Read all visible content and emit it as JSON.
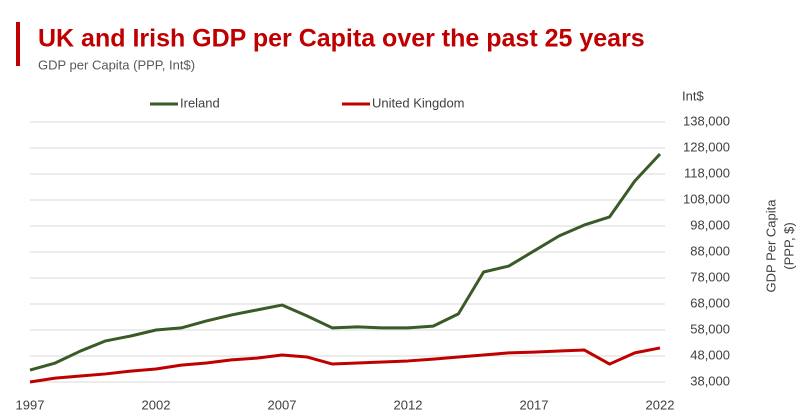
{
  "chart_data": {
    "type": "line",
    "title": "UK and Irish GDP per Capita over the past 25 years",
    "subtitle": "GDP per Capita (PPP, Int$)",
    "y_unit": "Int$",
    "ylabel_lines": [
      "GDP Per Capita",
      "(PPP, $)"
    ],
    "x": [
      1997,
      1998,
      1999,
      2000,
      2001,
      2002,
      2003,
      2004,
      2005,
      2006,
      2007,
      2008,
      2009,
      2010,
      2011,
      2012,
      2013,
      2014,
      2015,
      2016,
      2017,
      2018,
      2019,
      2020,
      2021,
      2022
    ],
    "series": [
      {
        "name": "Ireland",
        "color": "#3a5a27",
        "values": [
          42600,
          45300,
          49900,
          53800,
          55700,
          58000,
          58800,
          61500,
          63800,
          65700,
          67600,
          63400,
          58800,
          59200,
          58800,
          58800,
          59500,
          64200,
          80300,
          82600,
          88400,
          94200,
          98400,
          101500,
          115300,
          125700
        ]
      },
      {
        "name": "United Kingdom",
        "color": "#c00000",
        "values": [
          38000,
          39500,
          40300,
          41100,
          42200,
          43000,
          44500,
          45300,
          46500,
          47200,
          48400,
          47600,
          44900,
          45300,
          45700,
          46100,
          46800,
          47600,
          48400,
          49200,
          49500,
          49900,
          50300,
          44900,
          49200,
          51100
        ]
      }
    ],
    "xlim": [
      1997,
      2022
    ],
    "xticks": [
      1997,
      2002,
      2007,
      2012,
      2017,
      2022
    ],
    "ylim": [
      38000,
      138000
    ],
    "yticks": [
      {
        "value": 38000,
        "label": "38,000"
      },
      {
        "value": 48000,
        "label": "48,000"
      },
      {
        "value": 58000,
        "label": "58,000"
      },
      {
        "value": 68000,
        "label": "68,000"
      },
      {
        "value": 78000,
        "label": "78,000"
      },
      {
        "value": 88000,
        "label": "88,000"
      },
      {
        "value": 98000,
        "label": "98,000"
      },
      {
        "value": 108000,
        "label": "108,000"
      },
      {
        "value": 118000,
        "label": "118,000"
      },
      {
        "value": 128000,
        "label": "128,000"
      },
      {
        "value": 138000,
        "label": "138,000"
      }
    ],
    "grid": true,
    "legend": "top"
  }
}
